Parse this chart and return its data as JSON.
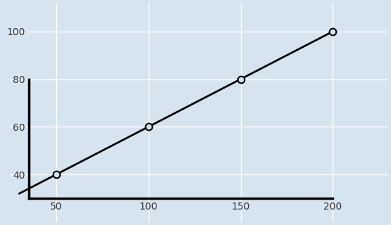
{
  "x_data": [
    50,
    100,
    150,
    200
  ],
  "y_data": [
    40,
    60,
    80,
    100
  ],
  "x_extend_start": 30,
  "line_color": "#000000",
  "marker_style": "o",
  "marker_edgecolor": "#000000",
  "marker_size": 7,
  "marker_linewidth": 1.5,
  "line_width": 2,
  "background_color": "#d6e4f0",
  "grid_color": "#ffffff",
  "xlim": [
    25,
    230
  ],
  "ylim": [
    20,
    112
  ],
  "xticks": [
    50,
    100,
    150,
    200
  ],
  "yticks": [
    40,
    60,
    80,
    100
  ],
  "spine_color": "#000000",
  "spine_linewidth": 2.5,
  "left_spine_x": 35,
  "bottom_spine_y": 30,
  "figsize": [
    5.55,
    3.2
  ],
  "dpi": 100
}
